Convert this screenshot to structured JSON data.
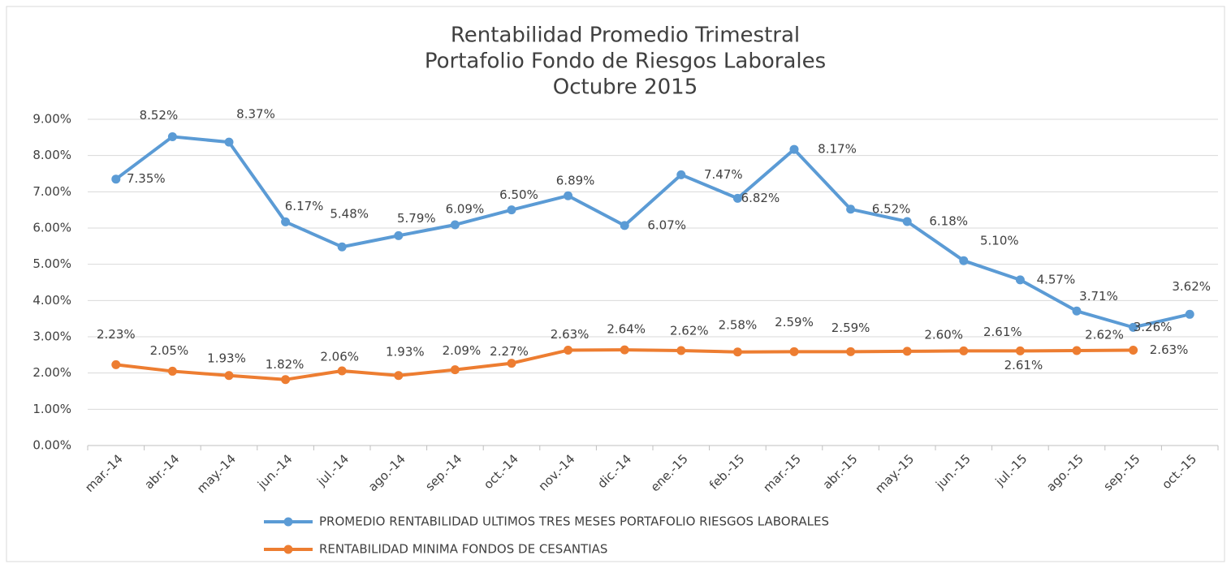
{
  "chart_data": {
    "type": "line",
    "title": [
      "Rentabilidad Promedio Trimestral",
      "Portafolio Fondo de Riesgos Laborales",
      "Octubre 2015"
    ],
    "categories": [
      "mar.-14",
      "abr.-14",
      "may.-14",
      "jun.-14",
      "jul.-14",
      "ago.-14",
      "sep.-14",
      "oct.-14",
      "nov.-14",
      "dic.-14",
      "ene.-15",
      "feb.-15",
      "mar.-15",
      "abr.-15",
      "may.-15",
      "jun.-15",
      "jul.-15",
      "ago.-15",
      "sep.-15",
      "oct.-15"
    ],
    "series": [
      {
        "name": "PROMEDIO RENTABILIDAD ULTIMOS TRES MESES PORTAFOLIO RIESGOS LABORALES",
        "color": "#5b9bd5",
        "values": [
          7.35,
          8.52,
          8.37,
          6.17,
          5.48,
          5.79,
          6.09,
          6.5,
          6.89,
          6.07,
          7.47,
          6.82,
          8.17,
          6.52,
          6.18,
          5.1,
          4.57,
          3.71,
          3.26,
          3.62
        ],
        "value_labels": [
          "7.35%",
          "8.52%",
          "8.37%",
          "6.17%",
          "5.48%",
          "5.79%",
          "6.09%",
          "6.50%",
          "6.89%",
          "6.07%",
          "7.47%",
          "6.82%",
          "8.17%",
          "6.52%",
          "6.18%",
          "5.10%",
          "4.57%",
          "3.71%",
          "3.26%",
          "3.62%"
        ]
      },
      {
        "name": "RENTABILIDAD MINIMA FONDOS DE CESANTIAS",
        "color": "#ed7d31",
        "values": [
          2.23,
          2.05,
          1.93,
          1.82,
          2.06,
          1.93,
          2.09,
          2.27,
          2.63,
          2.64,
          2.62,
          2.58,
          2.59,
          2.59,
          2.6,
          2.61,
          2.61,
          2.62,
          2.63,
          null
        ],
        "value_labels": [
          "2.23%",
          "2.05%",
          "1.93%",
          "1.82%",
          "2.06%",
          "1.93%",
          "2.09%",
          "2.27%",
          "2.63%",
          "2.64%",
          "2.62%",
          "2.58%",
          "2.59%",
          "2.59%",
          "2.60%",
          "2.61%",
          "2.61%",
          "2.62%",
          "2.63%",
          null
        ]
      }
    ],
    "ylim": [
      0,
      9
    ],
    "yticks": [
      {
        "value": 0,
        "label": "0.00%"
      },
      {
        "value": 1,
        "label": "1.00%"
      },
      {
        "value": 2,
        "label": "2.00%"
      },
      {
        "value": 3,
        "label": "3.00%"
      },
      {
        "value": 4,
        "label": "4.00%"
      },
      {
        "value": 5,
        "label": "5.00%"
      },
      {
        "value": 6,
        "label": "6.00%"
      },
      {
        "value": 7,
        "label": "7.00%"
      },
      {
        "value": 8,
        "label": "8.00%"
      },
      {
        "value": 9,
        "label": "9.00%"
      }
    ],
    "grid": true,
    "legend": "bottom"
  }
}
